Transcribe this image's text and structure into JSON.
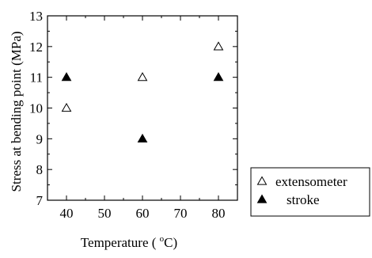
{
  "chart_data": {
    "type": "scatter",
    "title": "",
    "xlabel": "Temperature ( ",
    "xlabel_sup": "o",
    "xlabel_unit": "C)",
    "ylabel": "Stress at bending point (MPa)",
    "xlim": [
      35,
      85
    ],
    "ylim": [
      7,
      13
    ],
    "x_ticks": [
      "40",
      "50",
      "60",
      "70",
      "80"
    ],
    "y_ticks": [
      "7",
      "8",
      "9",
      "10",
      "11",
      "12",
      "13"
    ],
    "grid": false,
    "legend_position": "right",
    "series": [
      {
        "name": "extensometer",
        "marker": "open-triangle",
        "color": "#000000",
        "points": [
          {
            "x": 40,
            "y": 10
          },
          {
            "x": 60,
            "y": 11
          },
          {
            "x": 80,
            "y": 12
          }
        ]
      },
      {
        "name": "stroke",
        "marker": "filled-triangle",
        "color": "#000000",
        "points": [
          {
            "x": 40,
            "y": 11
          },
          {
            "x": 60,
            "y": 9
          },
          {
            "x": 80,
            "y": 11
          }
        ]
      }
    ]
  }
}
